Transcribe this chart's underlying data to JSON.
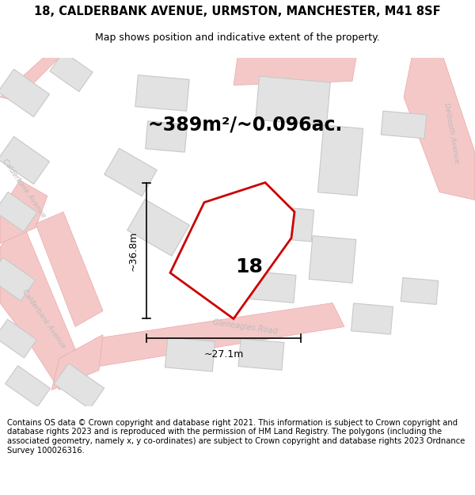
{
  "title": "18, CALDERBANK AVENUE, URMSTON, MANCHESTER, M41 8SF",
  "subtitle": "Map shows position and indicative extent of the property.",
  "area_label": "~389m²/~0.096ac.",
  "property_number": "18",
  "dim_vertical": "~36.8m",
  "dim_horizontal": "~27.1m",
  "footer": "Contains OS data © Crown copyright and database right 2021. This information is subject to Crown copyright and database rights 2023 and is reproduced with the permission of HM Land Registry. The polygons (including the associated geometry, namely x, y co-ordinates) are subject to Crown copyright and database rights 2023 Ordnance Survey 100026316.",
  "bg_color": "#f2f2f2",
  "road_color": "#f5c8c8",
  "road_outline": "#e8a8a8",
  "building_fill": "#e2e2e2",
  "building_outline": "#c8c8c8",
  "property_fill": "#ffffff",
  "property_outline": "#cc0000",
  "road_label_color": "#bbbbbb",
  "title_fontsize": 10.5,
  "subtitle_fontsize": 9,
  "area_fontsize": 17,
  "property_num_fontsize": 18,
  "dim_fontsize": 9,
  "footer_fontsize": 7.2
}
